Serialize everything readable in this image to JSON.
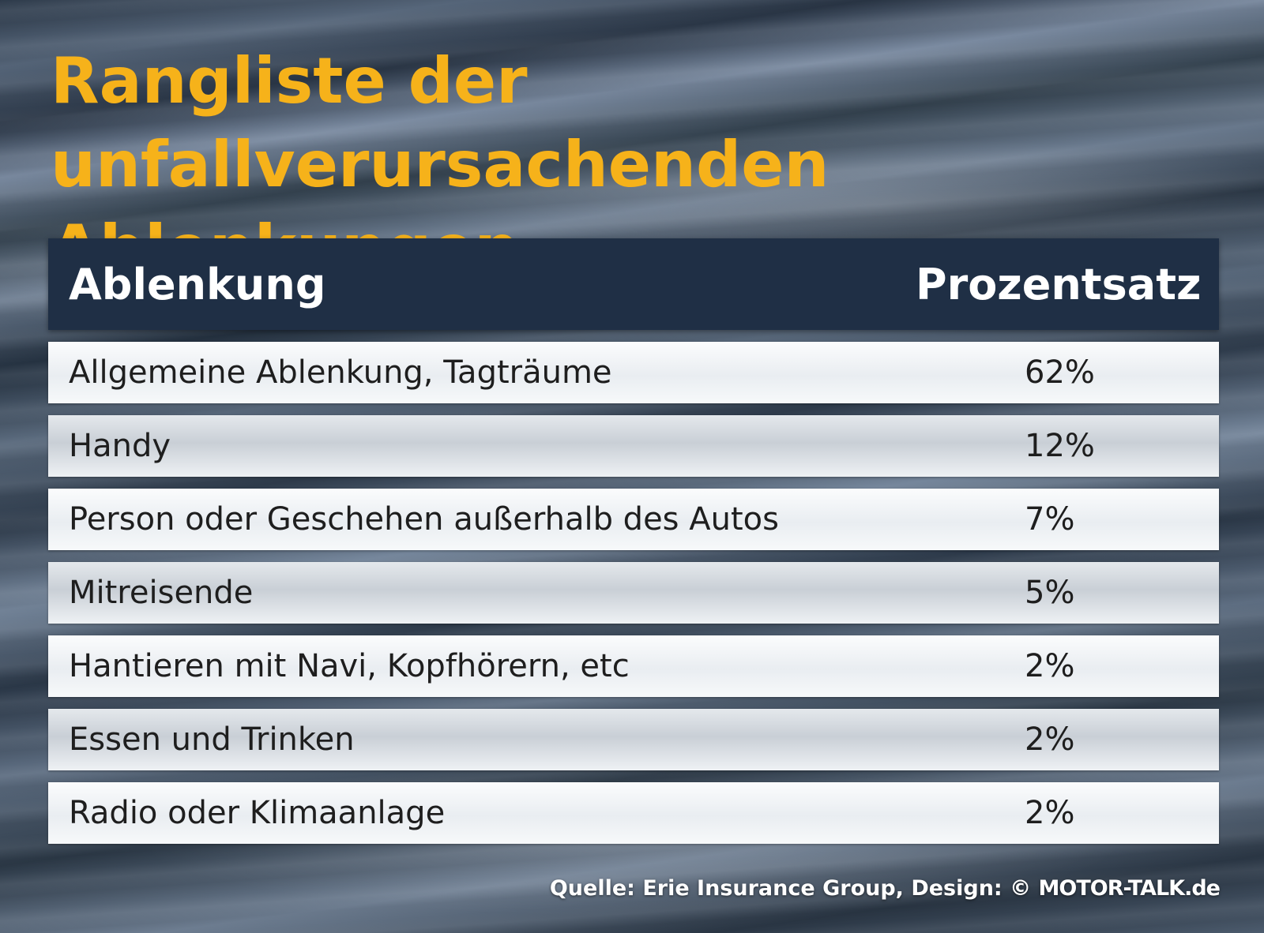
{
  "title": "Rangliste der unfallverursachenden Ablenkungen",
  "colors": {
    "title": "#f6b21a",
    "header_bg": "#1f2f45",
    "header_text": "#ffffff",
    "row_text": "#1e1e1e"
  },
  "chart_data": {
    "type": "table",
    "columns": [
      "Ablenkung",
      "Prozentsatz"
    ],
    "rows": [
      [
        "Allgemeine Ablenkung, Tagträume",
        "62%"
      ],
      [
        "Handy",
        "12%"
      ],
      [
        "Person oder Geschehen außerhalb des Autos",
        "7%"
      ],
      [
        "Mitreisende",
        "5%"
      ],
      [
        "Hantieren mit Navi, Kopfhörern, etc",
        "2%"
      ],
      [
        "Essen und Trinken",
        "2%"
      ],
      [
        "Radio oder Klimaanlage",
        "2%"
      ]
    ],
    "values": [
      62,
      12,
      7,
      5,
      2,
      2,
      2
    ]
  },
  "source": {
    "prefix": "Quelle: Erie Insurance Group, Design: © ",
    "brand": "MOTOR-TALK.de"
  }
}
